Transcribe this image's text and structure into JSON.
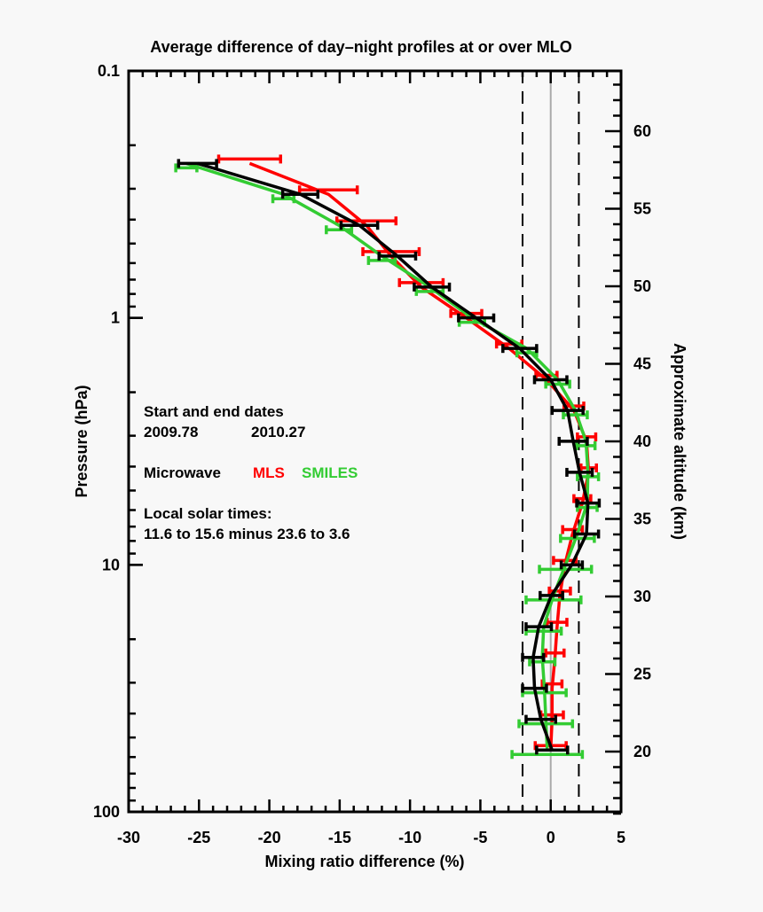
{
  "chart_data": {
    "type": "line",
    "title": "Average difference of day–night profiles at or over MLO",
    "xlabel": "Mixing ratio difference (%)",
    "ylabel": "Pressure (hPa)",
    "y2label": "Approximate altitude (km)",
    "xlim": [
      -30,
      5
    ],
    "ylim": [
      100,
      0.1
    ],
    "yscale": "log",
    "y2lim_km": [
      15.5,
      63.5
    ],
    "xticks": [
      "-30",
      "-25",
      "-20",
      "-15",
      "-10",
      "-5",
      "0",
      "5"
    ],
    "yticks": [
      "0.1",
      "1",
      "10",
      "100"
    ],
    "y2ticks": [
      "20",
      "25",
      "30",
      "35",
      "40",
      "45",
      "50",
      "55",
      "60"
    ],
    "reference_lines": {
      "zero": 0,
      "dashed": [
        -2,
        2
      ]
    },
    "grid": false,
    "pressure_hPa": [
      0.237,
      0.316,
      0.422,
      0.562,
      0.75,
      1.0,
      1.33,
      1.78,
      2.37,
      3.16,
      4.22,
      5.62,
      7.5,
      10.0,
      13.3,
      17.8,
      23.7,
      31.6,
      42.2,
      56.2
    ],
    "series": [
      {
        "color": "#ff0000",
        "values": [
          -21.4,
          -15.8,
          -13.1,
          -11.35,
          -9.2,
          -6.0,
          -2.95,
          -0.3,
          1.65,
          2.55,
          2.7,
          2.25,
          1.55,
          1.0,
          0.65,
          0.45,
          0.3,
          0.1,
          0.1,
          0.0
        ],
        "errors": [
          2.2,
          2.05,
          2.1,
          2.0,
          1.55,
          1.1,
          0.9,
          0.75,
          0.7,
          0.65,
          0.55,
          0.6,
          0.7,
          0.8,
          0.75,
          0.7,
          0.65,
          0.7,
          0.8,
          1.1
        ]
      },
      {
        "color": "#33cc33",
        "values": [
          -25.9,
          -19.0,
          -15.05,
          -12.0,
          -8.6,
          -5.6,
          -1.7,
          0.5,
          1.75,
          2.5,
          2.65,
          2.6,
          1.9,
          1.05,
          0.2,
          -0.5,
          -0.6,
          -0.45,
          -0.35,
          -0.25
        ],
        "errors": [
          0.75,
          0.75,
          0.9,
          0.95,
          0.95,
          0.9,
          0.7,
          0.85,
          0.85,
          0.65,
          0.75,
          0.7,
          1.2,
          1.85,
          1.95,
          1.25,
          0.9,
          1.55,
          1.9,
          2.5
        ]
      },
      {
        "color": "#000000",
        "values": [
          -25.1,
          -17.8,
          -13.6,
          -10.9,
          -8.45,
          -5.3,
          -2.2,
          0.0,
          1.2,
          1.6,
          2.05,
          2.65,
          2.55,
          1.5,
          0.05,
          -0.85,
          -1.25,
          -1.15,
          -0.7,
          0.1
        ],
        "errors": [
          1.35,
          1.25,
          1.3,
          1.3,
          1.25,
          1.25,
          1.2,
          1.15,
          1.1,
          1.0,
          0.9,
          0.8,
          0.85,
          0.75,
          0.8,
          0.9,
          0.75,
          0.85,
          1.05,
          1.1
        ]
      }
    ],
    "annotations": {
      "dates_heading": "Start and end dates",
      "start_date": "2009.78",
      "end_date": "2010.27",
      "instrument_prefix": "Microwave",
      "mls_label": "MLS",
      "smiles_label": "SMILES",
      "times_heading": "Local solar times:",
      "times_value": "11.6 to 15.6 minus 23.6 to 3.6"
    }
  }
}
